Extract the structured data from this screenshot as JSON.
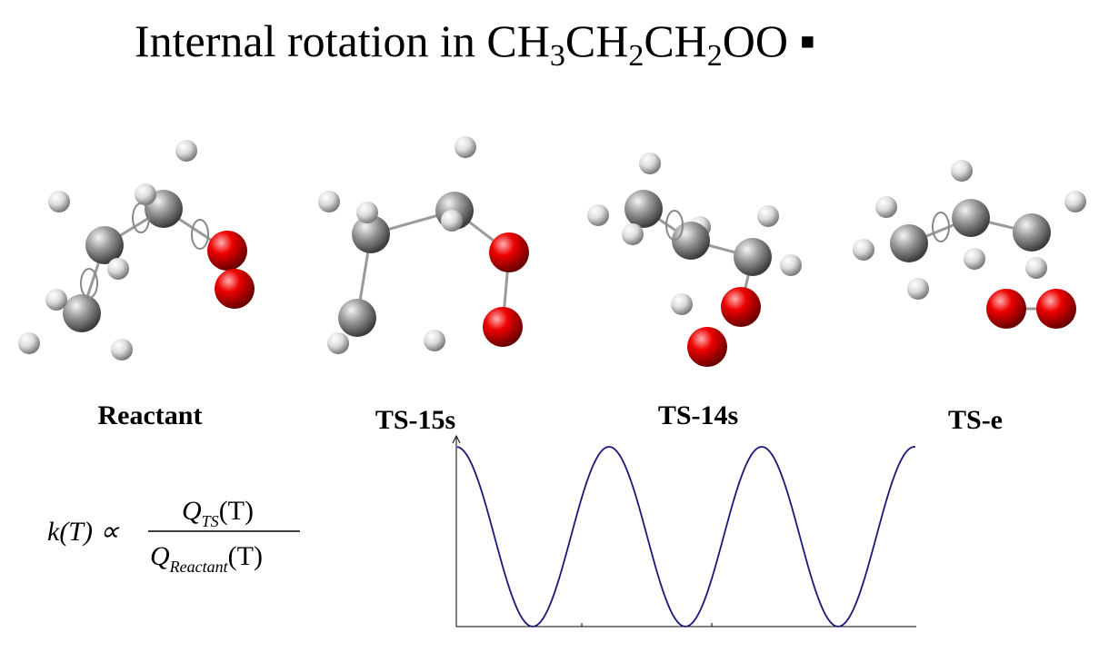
{
  "title": [
    "Internal rotation in CH",
    "3",
    "CH",
    "2",
    "CH",
    "2",
    "OO ▪"
  ],
  "structures": [
    "Reactant",
    "TS-15s",
    "TS-14s",
    "TS-e"
  ],
  "formula": {
    "lhs": "k(T) ∝",
    "numerator": {
      "symbol": "Q",
      "subscript": "TS",
      "argument": "(T)"
    },
    "denominator": {
      "symbol": "Q",
      "subscript": "Reactant",
      "argument": "(T)"
    }
  }
}
